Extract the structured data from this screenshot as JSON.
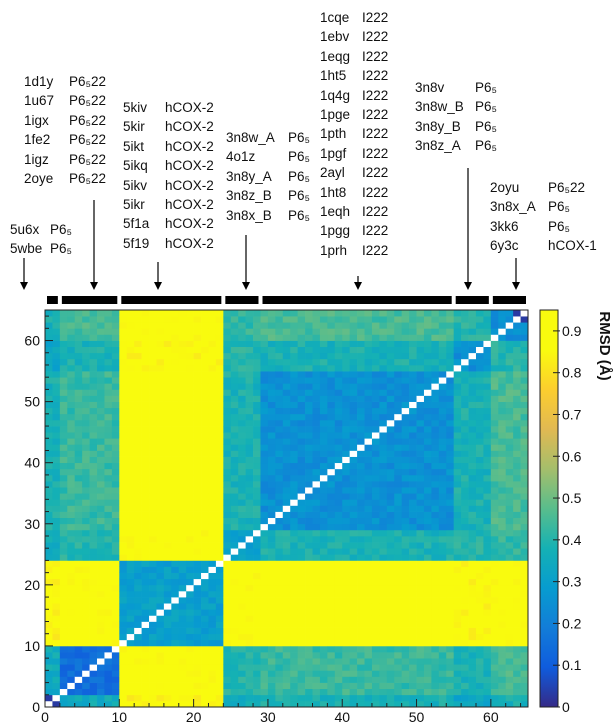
{
  "chart_data": {
    "type": "heatmap",
    "title": "",
    "xlabel": "",
    "ylabel": "",
    "n": 65,
    "xlim": [
      0,
      65
    ],
    "ylim": [
      0,
      65
    ],
    "x_ticks": [
      "0",
      "10",
      "20",
      "30",
      "40",
      "50",
      "60"
    ],
    "y_ticks": [
      "0",
      "10",
      "20",
      "30",
      "40",
      "50",
      "60"
    ],
    "colorbar": {
      "label": "RMSD (Å)",
      "range": [
        0,
        0.95
      ],
      "ticks": [
        "0",
        "0.1",
        "0.2",
        "0.3",
        "0.4",
        "0.5",
        "0.6",
        "0.7",
        "0.8",
        "0.9"
      ]
    },
    "blocks": [
      {
        "start": 0,
        "end": 2
      },
      {
        "start": 2,
        "end": 10
      },
      {
        "start": 10,
        "end": 24
      },
      {
        "start": 24,
        "end": 29
      },
      {
        "start": 29,
        "end": 55
      },
      {
        "start": 55,
        "end": 60
      },
      {
        "start": 60,
        "end": 65
      }
    ],
    "block_rmsd": [
      [
        0.25,
        0.35,
        0.85,
        0.35,
        0.38,
        0.33,
        0.38
      ],
      [
        0.35,
        0.15,
        0.88,
        0.4,
        0.43,
        0.38,
        0.45
      ],
      [
        0.85,
        0.88,
        0.3,
        0.88,
        0.9,
        0.86,
        0.88
      ],
      [
        0.35,
        0.4,
        0.88,
        0.3,
        0.38,
        0.4,
        0.42
      ],
      [
        0.38,
        0.43,
        0.9,
        0.38,
        0.25,
        0.38,
        0.45
      ],
      [
        0.33,
        0.38,
        0.86,
        0.4,
        0.38,
        0.25,
        0.4
      ],
      [
        0.38,
        0.45,
        0.88,
        0.42,
        0.45,
        0.4,
        0.25
      ]
    ]
  },
  "annotations": [
    {
      "rows": [
        [
          "5u6x",
          "P6₅"
        ],
        [
          "5wbe",
          "P6₅"
        ]
      ]
    },
    {
      "rows": [
        [
          "1d1y",
          "P6₅22"
        ],
        [
          "1u67",
          "P6₅22"
        ],
        [
          "1igx",
          "P6₅22"
        ],
        [
          "1fe2",
          "P6₅22"
        ],
        [
          "1igz",
          "P6₅22"
        ],
        [
          "2oye",
          "P6₅22"
        ]
      ]
    },
    {
      "rows": [
        [
          "5kiv",
          "hCOX-2"
        ],
        [
          "5kir",
          "hCOX-2"
        ],
        [
          "5ikt",
          "hCOX-2"
        ],
        [
          "5ikq",
          "hCOX-2"
        ],
        [
          "5ikv",
          "hCOX-2"
        ],
        [
          "5ikr",
          "hCOX-2"
        ],
        [
          "5f1a",
          "hCOX-2"
        ],
        [
          "5f19",
          "hCOX-2"
        ]
      ]
    },
    {
      "rows": [
        [
          "3n8w_A",
          "P6₅"
        ],
        [
          "4o1z",
          "P6₅"
        ],
        [
          "3n8y_A",
          "P6₅"
        ],
        [
          "3n8z_B",
          "P6₅"
        ],
        [
          "3n8x_B",
          "P6₅"
        ]
      ]
    },
    {
      "rows": [
        [
          "1cqe",
          "I222"
        ],
        [
          "1ebv",
          "I222"
        ],
        [
          "1eqg",
          "I222"
        ],
        [
          "1ht5",
          "I222"
        ],
        [
          "1q4g",
          "I222"
        ],
        [
          "1pge",
          "I222"
        ],
        [
          "1pth",
          "I222"
        ],
        [
          "1pgf",
          "I222"
        ],
        [
          "2ayl",
          "I222"
        ],
        [
          "1ht8",
          "I222"
        ],
        [
          "1eqh",
          "I222"
        ],
        [
          "1pgg",
          "I222"
        ],
        [
          "1prh",
          "I222"
        ]
      ]
    },
    {
      "rows": [
        [
          "3n8v",
          "P6₅"
        ],
        [
          "3n8w_B",
          "P6₅"
        ],
        [
          "3n8y_B",
          "P6₅"
        ],
        [
          "3n8z_A",
          "P6₅"
        ]
      ]
    },
    {
      "rows": [
        [
          "2oyu",
          "P6₅22"
        ],
        [
          "3n8x_A",
          "P6₅"
        ],
        [
          "3kk6",
          "P6₅"
        ],
        [
          "6y3c",
          "hCOX-1"
        ]
      ]
    }
  ],
  "colors": {
    "low": "#3a2fa3",
    "mid": "#27b0b6",
    "high": "#f7d92c",
    "diagonal": "#ffffff",
    "block_bar": "#000000"
  }
}
